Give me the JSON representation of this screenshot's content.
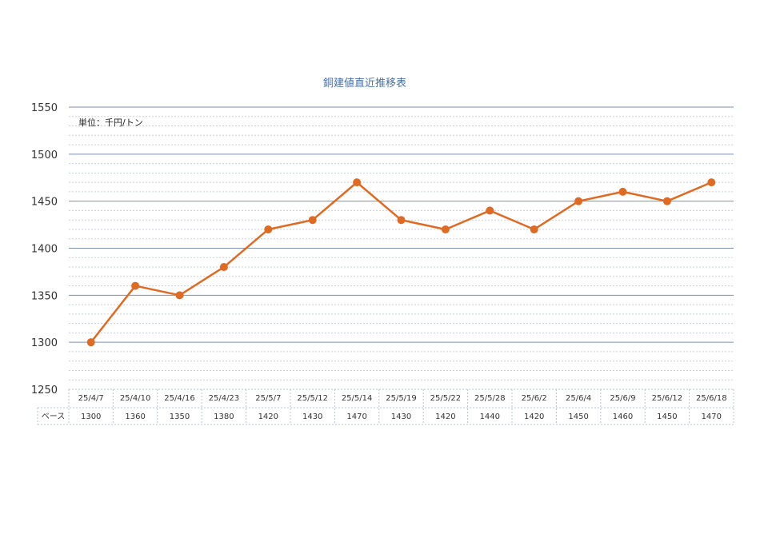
{
  "chart_data": {
    "type": "line",
    "title": "銅建値直近推移表",
    "unit_label": "単位：千円/トン",
    "categories": [
      "25/4/7",
      "25/4/10",
      "25/4/16",
      "25/4/23",
      "25/5/7",
      "25/5/12",
      "25/5/14",
      "25/5/19",
      "25/5/22",
      "25/5/28",
      "25/6/2",
      "25/6/4",
      "25/6/9",
      "25/6/12",
      "25/6/18"
    ],
    "series": [
      {
        "name": "ベース",
        "values": [
          1300,
          1360,
          1350,
          1380,
          1420,
          1430,
          1470,
          1430,
          1420,
          1440,
          1420,
          1450,
          1460,
          1450,
          1470
        ],
        "color": "#e06a22"
      }
    ],
    "ylim": [
      1250,
      1550
    ],
    "yticks": [
      1250,
      1300,
      1350,
      1400,
      1450,
      1500,
      1550
    ],
    "grid": true,
    "data_table": true,
    "colors": {
      "major_grid": "#7d8fb3",
      "minor_grid": "#c8cfdc",
      "table_border": "#b8c0cf"
    }
  }
}
